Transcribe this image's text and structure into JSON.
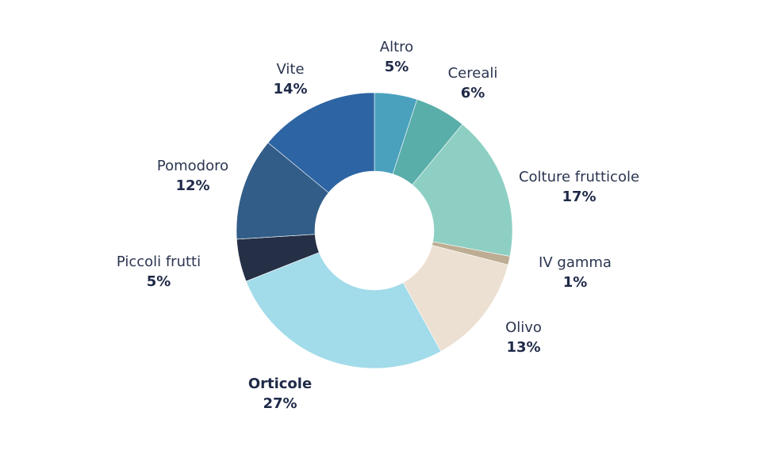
{
  "chart_data": {
    "type": "pie",
    "donut": true,
    "title": "",
    "slices": [
      {
        "label": "Altro",
        "pct_label": "5%",
        "value": 5,
        "color": "#4aa1bd"
      },
      {
        "label": "Cereali",
        "pct_label": "6%",
        "value": 6,
        "color": "#5aaeaa"
      },
      {
        "label": "Colture frutticole",
        "pct_label": "17%",
        "value": 17,
        "color": "#8ecfc3"
      },
      {
        "label": "IV gamma",
        "pct_label": "1%",
        "value": 1,
        "color": "#bdad93"
      },
      {
        "label": "Olivo",
        "pct_label": "13%",
        "value": 13,
        "color": "#ece0d2"
      },
      {
        "label": "Orticole",
        "pct_label": "27%",
        "value": 27,
        "color": "#a2dbe9",
        "bold": true
      },
      {
        "label": "Piccoli frutti",
        "pct_label": "5%",
        "value": 5,
        "color": "#253047"
      },
      {
        "label": "Pomodoro",
        "pct_label": "12%",
        "value": 12,
        "color": "#325d88"
      },
      {
        "label": "Vite",
        "pct_label": "14%",
        "value": 14,
        "color": "#2d64a3"
      }
    ],
    "legend": "none"
  }
}
